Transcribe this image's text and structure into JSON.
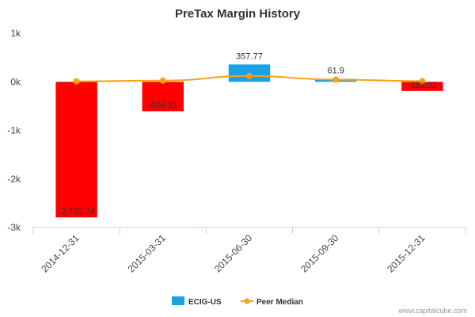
{
  "chart_data": {
    "type": "bar",
    "title": "PreTax Margin History",
    "categories": [
      "2014-12-31",
      "2015-03-31",
      "2015-06-30",
      "2015-09-30",
      "2015-12-31"
    ],
    "series": [
      {
        "name": "ECIG-US",
        "type": "bar",
        "values": [
          -2792.74,
          -606.31,
          357.77,
          61.9,
          -189.02
        ],
        "labels": [
          "-2,792.74",
          "-606.31",
          "357.77",
          "61.9",
          "-189.02"
        ],
        "positive_color": "#1ba1e2",
        "negative_color": "#ff0000"
      },
      {
        "name": "Peer Median",
        "type": "line",
        "values": [
          10,
          25,
          120,
          45,
          15
        ],
        "color": "#f7a21b"
      }
    ],
    "yticks": [
      1000,
      0,
      -1000,
      -2000,
      -3000
    ],
    "ytick_labels": [
      "1k",
      "0k",
      "-1k",
      "-2k",
      "-3k"
    ],
    "ylim": [
      -3000,
      1000
    ],
    "legend_position": "bottom-center",
    "grid": false
  },
  "credit": "www.capitalcube.com"
}
